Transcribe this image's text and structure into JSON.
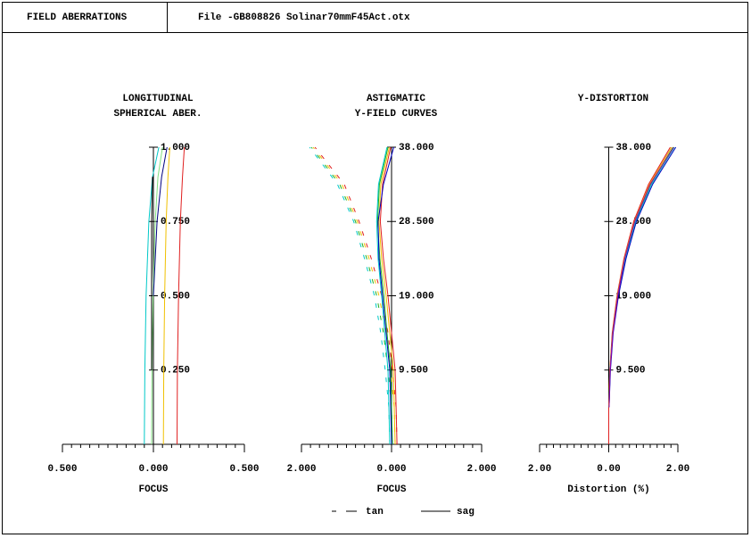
{
  "header": {
    "title": "FIELD ABERRATIONS",
    "file": "File -GB808826 Solinar70mmF45Act.otx"
  },
  "legend": [
    {
      "name": "tan",
      "dash": true
    },
    {
      "name": "sag",
      "dash": false
    }
  ],
  "chart_data": [
    {
      "type": "line",
      "title": [
        "LONGITUDINAL",
        "SPHERICAL ABER."
      ],
      "xlabel": "FOCUS",
      "xlim": [
        -0.5,
        0.5
      ],
      "xticks": [
        {
          "value": -0.5,
          "label": "0.500"
        },
        {
          "value": 0,
          "label": "0.000"
        },
        {
          "value": 0.5,
          "label": "0.500"
        }
      ],
      "ylim": [
        0,
        1
      ],
      "yticks": [
        {
          "value": 0.25,
          "label": "0.250"
        },
        {
          "value": 0.5,
          "label": "0.500"
        },
        {
          "value": 0.75,
          "label": "0.750"
        },
        {
          "value": 1,
          "label": "1.000"
        }
      ],
      "y": [
        0,
        0.25,
        0.5,
        0.75,
        0.9,
        1
      ],
      "series": [
        {
          "color": "#00c8c8",
          "dash": false,
          "values": [
            -0.05,
            -0.047,
            -0.04,
            -0.025,
            -0.005,
            0.03
          ]
        },
        {
          "color": "#80e080",
          "dash": false,
          "values": [
            -0.01,
            -0.008,
            -0.002,
            0.01,
            0.025,
            0.05
          ]
        },
        {
          "color": "#f0c000",
          "dash": false,
          "values": [
            0.055,
            0.057,
            0.062,
            0.07,
            0.08,
            0.09
          ]
        },
        {
          "color": "#e02020",
          "dash": false,
          "values": [
            0.13,
            0.132,
            0.138,
            0.148,
            0.16,
            0.17
          ]
        },
        {
          "color": "#000080",
          "dash": false,
          "values": [
            null,
            null,
            0,
            0.02,
            0.045,
            0.075
          ]
        },
        {
          "color": "#000000",
          "dash": false,
          "values": [
            null,
            -0.01,
            -0.01,
            -0.01,
            -0.005,
            null
          ]
        }
      ]
    },
    {
      "type": "line",
      "title": [
        "ASTIGMATIC",
        "Y-FIELD CURVES"
      ],
      "xlabel": "FOCUS",
      "xlim": [
        -2,
        2
      ],
      "xticks": [
        {
          "value": -2,
          "label": "2.000"
        },
        {
          "value": 0,
          "label": "0.000"
        },
        {
          "value": 2,
          "label": "2.000"
        }
      ],
      "ylim": [
        0,
        38
      ],
      "yticks": [
        {
          "value": 9.5,
          "label": "9.500"
        },
        {
          "value": 19,
          "label": "19.000"
        },
        {
          "value": 28.5,
          "label": "28.500"
        },
        {
          "value": 38,
          "label": "38.000"
        }
      ],
      "y": [
        0,
        4.75,
        9.5,
        14.25,
        19,
        23.75,
        28.5,
        33.25,
        38
      ],
      "series": [
        {
          "color": "#e02020",
          "dash": true,
          "values": [
            0.12,
            0.1,
            0.02,
            -0.08,
            -0.22,
            -0.45,
            -0.72,
            -1.05,
            -1.7
          ]
        },
        {
          "color": "#f0c000",
          "dash": true,
          "values": [
            0.08,
            0.06,
            -0.02,
            -0.12,
            -0.28,
            -0.5,
            -0.76,
            -1.1,
            -1.74
          ]
        },
        {
          "color": "#20b020",
          "dash": true,
          "values": [
            0.02,
            0.0,
            -0.08,
            -0.18,
            -0.33,
            -0.55,
            -0.8,
            -1.15,
            -1.78
          ]
        },
        {
          "color": "#00c8c8",
          "dash": true,
          "values": [
            -0.04,
            -0.06,
            -0.14,
            -0.24,
            -0.38,
            -0.6,
            -0.84,
            -1.2,
            -1.82
          ]
        },
        {
          "color": "#e02020",
          "dash": false,
          "values": [
            0.12,
            0.1,
            0.08,
            0.0,
            -0.08,
            -0.18,
            -0.25,
            -0.2,
            -0.02
          ]
        },
        {
          "color": "#f0c000",
          "dash": false,
          "values": [
            0.08,
            0.06,
            0.04,
            -0.04,
            -0.12,
            -0.22,
            -0.28,
            -0.24,
            -0.05
          ]
        },
        {
          "color": "#20b020",
          "dash": false,
          "values": [
            0.02,
            0.0,
            -0.02,
            -0.1,
            -0.17,
            -0.26,
            -0.31,
            -0.27,
            -0.08
          ]
        },
        {
          "color": "#00c8c8",
          "dash": false,
          "values": [
            -0.04,
            -0.06,
            -0.08,
            -0.15,
            -0.22,
            -0.3,
            -0.33,
            -0.29,
            -0.1
          ]
        },
        {
          "color": "#0000c0",
          "dash": false,
          "values": [
            0.0,
            -0.02,
            -0.04,
            -0.12,
            -0.2,
            -0.28,
            -0.3,
            -0.18,
            0.05
          ]
        }
      ]
    },
    {
      "type": "line",
      "title": [
        "Y-DISTORTION"
      ],
      "xlabel": "Distortion (%)",
      "xlim": [
        -2,
        2
      ],
      "xticks": [
        {
          "value": -2,
          "label": "2.00"
        },
        {
          "value": 0,
          "label": "0.00"
        },
        {
          "value": 2,
          "label": "2.00"
        }
      ],
      "ylim": [
        0,
        38
      ],
      "yticks": [
        {
          "value": 9.5,
          "label": "9.500"
        },
        {
          "value": 19,
          "label": "19.000"
        },
        {
          "value": 28.5,
          "label": "28.500"
        },
        {
          "value": 38,
          "label": "38.000"
        }
      ],
      "y": [
        0,
        4.75,
        9.5,
        14.25,
        19,
        23.75,
        28.5,
        33.25,
        38
      ],
      "series": [
        {
          "color": "#e02020",
          "dash": false,
          "values": [
            0,
            0,
            0.03,
            0.1,
            0.24,
            0.44,
            0.72,
            1.15,
            1.78
          ]
        },
        {
          "color": "#f0a000",
          "dash": false,
          "values": [
            null,
            0,
            0.03,
            0.11,
            0.25,
            0.45,
            0.74,
            1.18,
            1.82
          ]
        },
        {
          "color": "#20b020",
          "dash": false,
          "values": [
            null,
            0.01,
            0.04,
            0.12,
            0.26,
            0.47,
            0.76,
            1.21,
            1.86
          ]
        },
        {
          "color": "#00c8c8",
          "dash": false,
          "values": [
            null,
            0.01,
            0.04,
            0.12,
            0.27,
            0.48,
            0.78,
            1.24,
            1.9
          ]
        },
        {
          "color": "#0000c0",
          "dash": false,
          "values": [
            null,
            0.01,
            0.05,
            0.13,
            0.28,
            0.5,
            0.8,
            1.27,
            1.94
          ]
        },
        {
          "color": "#a000a0",
          "dash": false,
          "values": [
            null,
            0.01,
            0.04,
            0.12,
            0.26,
            0.46,
            0.75,
            1.2,
            1.88
          ]
        }
      ]
    }
  ]
}
